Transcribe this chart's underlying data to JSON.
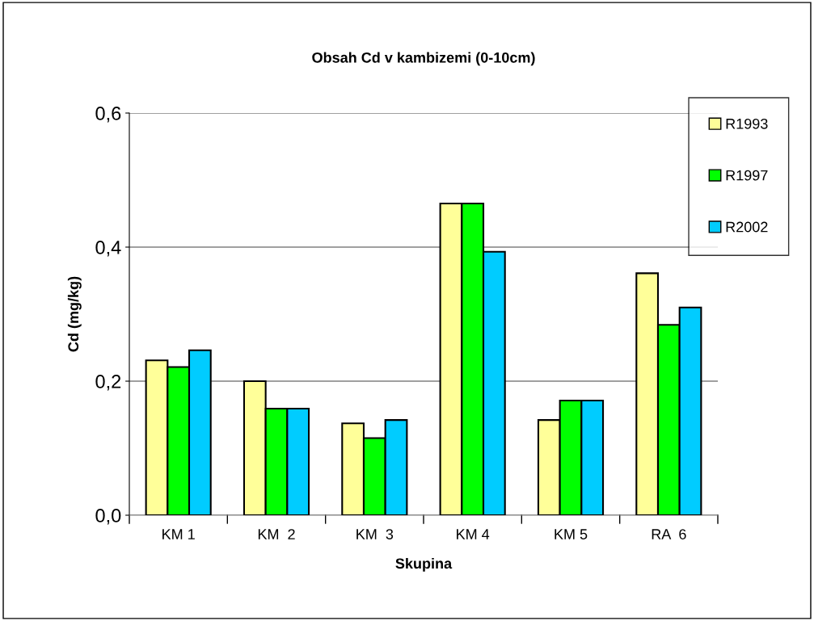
{
  "chart_data": {
    "type": "bar",
    "title": "Obsah Cd v kambizemi (0-10cm)",
    "xlabel": "Skupina",
    "ylabel": "Cd (mg/kg)",
    "categories": [
      "KM 1",
      "KM  2",
      "KM  3",
      "KM 4",
      "KM 5",
      "RA  6"
    ],
    "series": [
      {
        "name": "R1993",
        "color": "#ffff99",
        "values": [
          0.231,
          0.2,
          0.137,
          0.465,
          0.142,
          0.361
        ]
      },
      {
        "name": "R1997",
        "color": "#00ff00",
        "values": [
          0.221,
          0.159,
          0.115,
          0.465,
          0.171,
          0.284
        ]
      },
      {
        "name": "R2002",
        "color": "#00ccff",
        "values": [
          0.246,
          0.159,
          0.142,
          0.393,
          0.171,
          0.31
        ]
      }
    ],
    "ylim": [
      0,
      0.6
    ],
    "yticks": [
      {
        "value": 0,
        "label": "0,0"
      },
      {
        "value": 0.2,
        "label": "0,2"
      },
      {
        "value": 0.4,
        "label": "0,4"
      },
      {
        "value": 0.6,
        "label": "0,6"
      }
    ],
    "grid": "y",
    "legend": "right"
  }
}
